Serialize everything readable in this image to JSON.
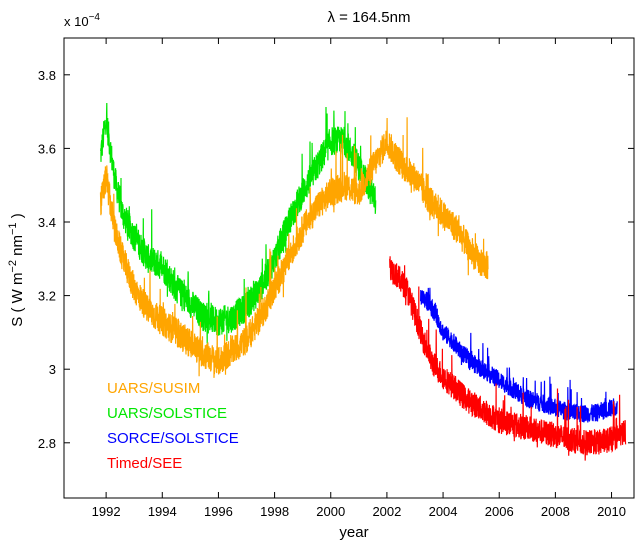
{
  "chart_data": {
    "type": "line",
    "title": "λ = 164.5nm",
    "xlabel": "year",
    "ylabel_main": "S ( W m",
    "ylabel_sup1": "−2",
    "ylabel_mid": " nm",
    "ylabel_sup2": "−1",
    "ylabel_end": " )",
    "y_multiplier_base": "x 10",
    "y_multiplier_exp": "−4",
    "xlim": [
      1990.5,
      2010.8
    ],
    "ylim": [
      2.65,
      3.9
    ],
    "x_ticks": [
      1992,
      1994,
      1996,
      1998,
      2000,
      2002,
      2004,
      2006,
      2008,
      2010
    ],
    "x_tick_labels": [
      "1992",
      "1994",
      "1996",
      "1998",
      "2000",
      "2002",
      "2004",
      "2006",
      "2008",
      "2010"
    ],
    "y_ticks": [
      2.8,
      3.0,
      3.2,
      3.4,
      3.6,
      3.8
    ],
    "y_tick_labels": [
      "2.8",
      "3",
      "3.2",
      "3.4",
      "3.6",
      "3.8"
    ],
    "grid": false,
    "legend_position": "bottom-left",
    "series": [
      {
        "name": "UARS/SOLSTICE",
        "color": "#00e600",
        "noise": 0.08,
        "x": [
          1991.8,
          1992.0,
          1992.3,
          1992.6,
          1993.0,
          1993.5,
          1994.0,
          1994.5,
          1995.0,
          1995.5,
          1996.0,
          1996.5,
          1997.0,
          1997.5,
          1998.0,
          1998.5,
          1999.0,
          1999.5,
          2000.0,
          2000.5,
          2001.0,
          2001.3,
          2001.6
        ],
        "y": [
          3.58,
          3.68,
          3.52,
          3.42,
          3.36,
          3.3,
          3.28,
          3.22,
          3.18,
          3.14,
          3.13,
          3.14,
          3.17,
          3.22,
          3.3,
          3.4,
          3.48,
          3.55,
          3.62,
          3.62,
          3.55,
          3.5,
          3.46
        ]
      },
      {
        "name": "UARS/SUSIM",
        "color": "#ffa500",
        "noise": 0.08,
        "x": [
          1991.8,
          1992.0,
          1992.3,
          1992.6,
          1993.0,
          1993.5,
          1994.0,
          1994.5,
          1995.0,
          1995.5,
          1996.0,
          1996.5,
          1997.0,
          1997.5,
          1998.0,
          1998.5,
          1999.0,
          1999.5,
          2000.0,
          2000.5,
          2001.0,
          2001.5,
          2002.0,
          2002.3,
          2002.6,
          2003.0,
          2003.5,
          2004.0,
          2004.5,
          2005.0,
          2005.3,
          2005.6
        ],
        "y": [
          3.45,
          3.52,
          3.38,
          3.3,
          3.22,
          3.16,
          3.13,
          3.1,
          3.07,
          3.04,
          3.02,
          3.05,
          3.08,
          3.14,
          3.22,
          3.3,
          3.38,
          3.44,
          3.48,
          3.5,
          3.48,
          3.55,
          3.62,
          3.58,
          3.55,
          3.52,
          3.46,
          3.42,
          3.38,
          3.32,
          3.29,
          3.28
        ]
      },
      {
        "name": "SORCE/SOLSTICE",
        "color": "#0000ff",
        "noise": 0.05,
        "x": [
          2003.2,
          2003.5,
          2003.8,
          2004.0,
          2004.3,
          2004.6,
          2005.0,
          2005.4,
          2005.8,
          2006.2,
          2006.6,
          2007.0,
          2007.4,
          2007.8,
          2008.2,
          2008.6,
          2009.0,
          2009.4,
          2009.8,
          2010.2
        ],
        "y": [
          3.2,
          3.18,
          3.14,
          3.1,
          3.08,
          3.05,
          3.02,
          3.0,
          2.98,
          2.96,
          2.94,
          2.92,
          2.91,
          2.9,
          2.89,
          2.88,
          2.88,
          2.88,
          2.89,
          2.9
        ]
      },
      {
        "name": "Timed/SEE",
        "color": "#ff0000",
        "noise": 0.07,
        "x": [
          2002.1,
          2002.4,
          2002.7,
          2003.0,
          2003.3,
          2003.6,
          2004.0,
          2004.4,
          2004.8,
          2005.2,
          2005.6,
          2006.0,
          2006.5,
          2007.0,
          2007.5,
          2008.0,
          2008.5,
          2009.0,
          2009.5,
          2010.0,
          2010.5
        ],
        "y": [
          3.28,
          3.25,
          3.22,
          3.15,
          3.08,
          3.02,
          2.98,
          2.95,
          2.92,
          2.9,
          2.88,
          2.86,
          2.85,
          2.84,
          2.83,
          2.82,
          2.81,
          2.8,
          2.8,
          2.81,
          2.83
        ]
      }
    ],
    "legend_order": [
      "UARS/SUSIM",
      "UARS/SOLSTICE",
      "SORCE/SOLSTICE",
      "Timed/SEE"
    ]
  }
}
